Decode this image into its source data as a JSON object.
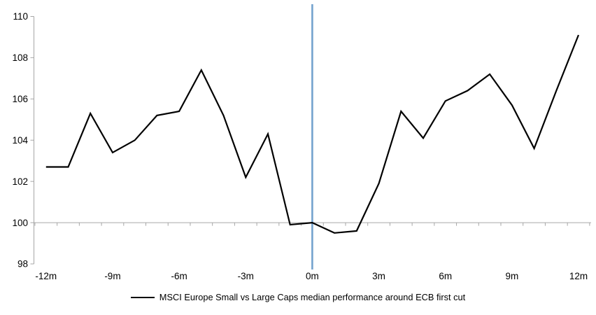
{
  "chart_data": {
    "type": "line",
    "title": "",
    "legend": "MSCI Europe Small vs Large Caps median performance around ECB first cut",
    "xlabel": "",
    "ylabel": "",
    "ylim": [
      98,
      110
    ],
    "xlim_months": [
      -12,
      12
    ],
    "grid": false,
    "legend_position": "bottom-center",
    "y_ticks": [
      98,
      100,
      102,
      104,
      106,
      108,
      110
    ],
    "x_ticks": [
      {
        "month": -12,
        "label": "-12m"
      },
      {
        "month": -9,
        "label": "-9m"
      },
      {
        "month": -6,
        "label": "-6m"
      },
      {
        "month": -3,
        "label": "-3m"
      },
      {
        "month": 0,
        "label": "0m"
      },
      {
        "month": 3,
        "label": "3m"
      },
      {
        "month": 6,
        "label": "6m"
      },
      {
        "month": 9,
        "label": "9m"
      },
      {
        "month": 12,
        "label": "12m"
      }
    ],
    "baseline_value": 100,
    "event_line_month": 0,
    "x": [
      -12,
      -11,
      -10,
      -9,
      -8,
      -7,
      -6,
      -5,
      -4,
      -3,
      -2,
      -1,
      0,
      1,
      2,
      3,
      4,
      5,
      6,
      7,
      8,
      9,
      10,
      11,
      12
    ],
    "series": [
      {
        "name": "MSCI Europe Small vs Large Caps median performance around ECB first cut",
        "values": [
          102.7,
          102.7,
          105.3,
          103.4,
          104.0,
          105.2,
          105.4,
          107.4,
          105.2,
          102.2,
          104.3,
          99.9,
          100.0,
          99.5,
          99.6,
          101.9,
          105.4,
          104.1,
          105.9,
          106.4,
          107.2,
          105.7,
          103.6,
          106.4,
          109.1
        ]
      }
    ],
    "colors": {
      "series_line": "#000000",
      "event_line": "#74A2CE",
      "axis_line": "#A6A6A6",
      "baseline_line": "#A6A6A6",
      "text": "#000000"
    }
  }
}
